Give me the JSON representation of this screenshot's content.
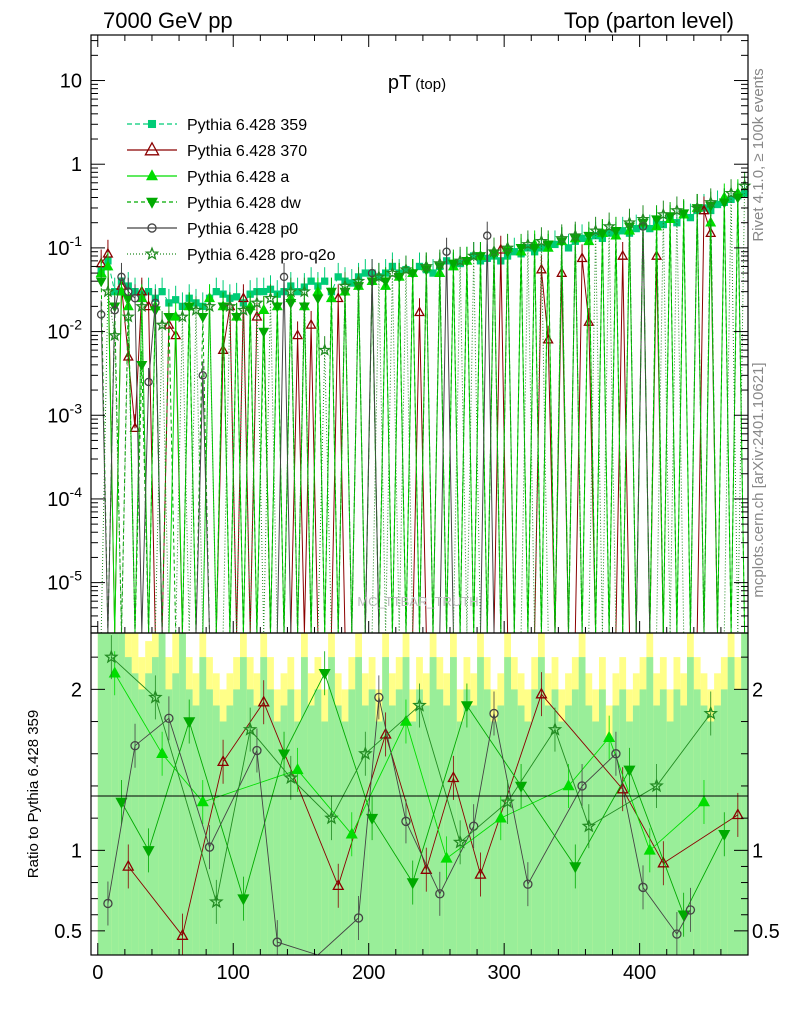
{
  "header": {
    "left": "7000 GeV pp",
    "right": "Top (parton level)"
  },
  "side_labels": {
    "rivet": "Rivet 4.1.0, ≥ 100k events",
    "mcplots": "mcplots.cern.ch [arXiv:2401.10621]"
  },
  "watermark": "MC_TTBAR_TRUTH",
  "chart_data": {
    "type": "line",
    "title": "pT",
    "title_sub": "(top)",
    "xlabel": "",
    "ylabel_main": "",
    "ylabel_ratio": "Ratio to Pythia 6.428 359",
    "xlim": [
      -5,
      480
    ],
    "ylim_main": [
      2.5e-06,
      35
    ],
    "ylim_ratio": [
      0.35,
      2.35
    ],
    "yscale_main": "log",
    "x_ticks": [
      "0",
      "100",
      "200",
      "300",
      "400"
    ],
    "x_tick_values": [
      0,
      100,
      200,
      300,
      400
    ],
    "y_ticks_main": [
      "10",
      "1",
      "10^-1",
      "10^-2",
      "10^-3",
      "10^-4",
      "10^-5"
    ],
    "y_tick_values_main": [
      10,
      1,
      0.1,
      0.01,
      0.001,
      0.0001,
      1e-05
    ],
    "y_ticks_ratio": [
      "2",
      "1",
      "0.5"
    ],
    "y_tick_values_ratio": [
      2,
      1,
      0.5
    ],
    "legend_position": "top-left",
    "bin_width": 5,
    "x": [
      2.5,
      7.5,
      12.5,
      17.5,
      22.5,
      27.5,
      32.5,
      37.5,
      42.5,
      47.5,
      52.5,
      57.5,
      62.5,
      67.5,
      72.5,
      77.5,
      82.5,
      87.5,
      92.5,
      97.5,
      102.5,
      107.5,
      112.5,
      117.5,
      122.5,
      127.5,
      132.5,
      137.5,
      142.5,
      147.5,
      152.5,
      157.5,
      162.5,
      167.5,
      172.5,
      177.5,
      182.5,
      187.5,
      192.5,
      197.5,
      202.5,
      207.5,
      212.5,
      217.5,
      222.5,
      227.5,
      232.5,
      237.5,
      242.5,
      247.5,
      252.5,
      257.5,
      262.5,
      267.5,
      272.5,
      277.5,
      282.5,
      287.5,
      292.5,
      297.5,
      302.5,
      307.5,
      312.5,
      317.5,
      322.5,
      327.5,
      332.5,
      337.5,
      342.5,
      347.5,
      352.5,
      357.5,
      362.5,
      367.5,
      372.5,
      377.5,
      382.5,
      387.5,
      392.5,
      397.5,
      402.5,
      407.5,
      412.5,
      417.5,
      422.5,
      427.5,
      432.5,
      437.5,
      442.5,
      447.5,
      452.5,
      457.5,
      462.5,
      467.5,
      472.5,
      477.5
    ],
    "series": [
      {
        "name": "Pythia 6.428 359",
        "color": "#00cc77",
        "dash": "5,3",
        "marker": "square",
        "filled": true,
        "values": [
          0.055,
          0.07,
          0.03,
          0.04,
          0.035,
          0.03,
          0.028,
          0.03,
          0.025,
          0.03,
          0.022,
          0.024,
          0.02,
          0.025,
          0.022,
          0.02,
          0.025,
          0.03,
          0.028,
          0.025,
          0.026,
          0.022,
          0.028,
          0.03,
          0.03,
          0.032,
          0.028,
          0.03,
          0.035,
          0.03,
          0.034,
          0.04,
          0.035,
          0.04,
          0.03,
          0.045,
          0.04,
          0.038,
          0.045,
          0.05,
          0.05,
          0.045,
          0.05,
          0.06,
          0.05,
          0.055,
          0.05,
          0.06,
          0.055,
          0.05,
          0.06,
          0.07,
          0.06,
          0.065,
          0.07,
          0.08,
          0.07,
          0.075,
          0.08,
          0.07,
          0.08,
          0.09,
          0.085,
          0.1,
          0.09,
          0.1,
          0.1,
          0.11,
          0.12,
          0.1,
          0.12,
          0.13,
          0.12,
          0.14,
          0.13,
          0.15,
          0.14,
          0.16,
          0.15,
          0.17,
          0.18,
          0.17,
          0.2,
          0.19,
          0.22,
          0.2,
          0.25,
          0.23,
          0.28,
          0.3,
          0.28,
          0.33,
          0.35,
          0.38,
          0.42,
          0.45
        ]
      },
      {
        "name": "Pythia 6.428 370",
        "color": "#8b0000",
        "dash": "",
        "marker": "triangle-up",
        "filled": false,
        "values": [
          0.065,
          0.085,
          0.0,
          0.035,
          0.005,
          0.0007,
          0.03,
          0.02,
          0.0,
          0.0,
          0.012,
          0.009,
          0.0,
          0.0,
          0.0,
          0.0,
          0.0,
          0.0,
          0.006,
          0.02,
          0.0,
          0.025,
          0.0,
          0.015,
          0.018,
          0.0,
          0.0,
          0.0,
          0.0,
          0.009,
          0.0,
          0.012,
          0.0,
          0.0,
          0.0,
          0.025,
          0.0,
          0.0,
          0.0,
          0.0,
          0.0,
          0.0,
          0.0,
          0.0,
          0.0,
          0.0,
          0.0,
          0.017,
          0.0,
          0.0,
          0.0,
          0.0,
          0.0,
          0.0,
          0.0,
          0.0,
          0.0,
          0.0,
          0.0,
          0.095,
          0.0,
          0.0,
          0.0,
          0.0,
          0.0,
          0.055,
          0.008,
          0.0,
          0.05,
          0.0,
          0.0,
          0.075,
          0.013,
          0.0,
          0.0,
          0.0,
          0.0,
          0.08,
          0.0,
          0.0,
          0.0,
          0.0,
          0.08,
          0.0,
          0.0,
          0.0,
          0.0,
          0.0,
          0.0,
          0.28,
          0.15,
          0.0,
          0.0,
          0.0,
          0.0,
          0.0
        ]
      },
      {
        "name": "Pythia 6.428 a",
        "color": "#00dd00",
        "dash": "",
        "marker": "triangle-up",
        "filled": true,
        "values": [
          0.05,
          0.06,
          0.0,
          0.03,
          0.02,
          0.0,
          0.025,
          0.0,
          0.02,
          0.0,
          0.0,
          0.015,
          0.0,
          0.02,
          0.0,
          0.0,
          0.025,
          0.0,
          0.02,
          0.0,
          0.015,
          0.0,
          0.02,
          0.0,
          0.018,
          0.0,
          0.02,
          0.0,
          0.025,
          0.0,
          0.02,
          0.0,
          0.03,
          0.0,
          0.025,
          0.0,
          0.03,
          0.0,
          0.035,
          0.0,
          0.04,
          0.0,
          0.035,
          0.0,
          0.045,
          0.0,
          0.05,
          0.0,
          0.06,
          0.0,
          0.05,
          0.0,
          0.06,
          0.0,
          0.07,
          0.0,
          0.08,
          0.0,
          0.09,
          0.0,
          0.1,
          0.0,
          0.09,
          0.0,
          0.11,
          0.0,
          0.1,
          0.0,
          0.12,
          0.0,
          0.13,
          0.0,
          0.12,
          0.0,
          0.15,
          0.0,
          0.14,
          0.0,
          0.16,
          0.0,
          0.2,
          0.0,
          0.18,
          0.0,
          0.22,
          0.0,
          0.25,
          0.0,
          0.3,
          0.0,
          0.2,
          0.0,
          0.4,
          0.0,
          0.45,
          0.0
        ]
      },
      {
        "name": "Pythia 6.428 dw",
        "color": "#00aa00",
        "dash": "4,3",
        "marker": "triangle-down",
        "filled": true,
        "values": [
          0.04,
          0.0,
          0.02,
          0.0,
          0.025,
          0.0,
          0.004,
          0.0,
          0.018,
          0.0,
          0.015,
          0.0,
          0.0,
          0.02,
          0.0,
          0.015,
          0.0,
          0.0,
          0.02,
          0.0,
          0.015,
          0.0,
          0.018,
          0.0,
          0.01,
          0.0,
          0.02,
          0.0,
          0.022,
          0.0,
          0.02,
          0.0,
          0.025,
          0.0,
          0.03,
          0.0,
          0.03,
          0.0,
          0.035,
          0.0,
          0.04,
          0.0,
          0.04,
          0.0,
          0.045,
          0.0,
          0.05,
          0.0,
          0.055,
          0.0,
          0.06,
          0.0,
          0.065,
          0.0,
          0.07,
          0.0,
          0.08,
          0.0,
          0.085,
          0.0,
          0.09,
          0.0,
          0.1,
          0.0,
          0.1,
          0.0,
          0.11,
          0.0,
          0.12,
          0.0,
          0.13,
          0.0,
          0.14,
          0.0,
          0.15,
          0.0,
          0.16,
          0.0,
          0.18,
          0.0,
          0.2,
          0.0,
          0.22,
          0.0,
          0.24,
          0.0,
          0.26,
          0.0,
          0.3,
          0.0,
          0.32,
          0.0,
          0.35,
          0.0,
          0.4,
          0.0
        ]
      },
      {
        "name": "Pythia 6.428 p0",
        "color": "#444444",
        "dash": "",
        "marker": "circle",
        "filled": false,
        "values": [
          0.016,
          0.0,
          0.018,
          0.045,
          0.03,
          0.025,
          0.0,
          0.0025,
          0.022,
          0.0,
          0.0,
          0.0,
          0.0,
          0.0,
          0.0,
          0.003,
          0.0,
          0.0,
          0.0,
          0.0,
          0.0,
          0.0,
          0.0,
          0.0,
          0.0,
          0.0,
          0.0,
          0.045,
          0.0,
          0.0,
          0.0,
          0.0,
          0.0,
          0.0,
          0.0,
          0.0,
          0.0,
          0.0,
          0.0,
          0.0,
          0.05,
          0.0,
          0.0,
          0.0,
          0.0,
          0.0,
          0.0,
          0.0,
          0.0,
          0.0,
          0.0,
          0.09,
          0.0,
          0.0,
          0.0,
          0.0,
          0.0,
          0.14,
          0.0,
          0.0,
          0.0,
          0.0,
          0.0,
          0.0,
          0.0,
          0.0,
          0.0,
          0.0,
          0.0,
          0.0,
          0.0,
          0.0,
          0.0,
          0.0,
          0.0,
          0.0,
          0.0,
          0.0,
          0.0,
          0.0,
          0.18,
          0.0,
          0.0,
          0.0,
          0.0,
          0.0,
          0.0,
          0.0,
          0.0,
          0.0,
          0.0,
          0.0,
          0.0,
          0.0,
          0.0,
          0.0
        ]
      },
      {
        "name": "Pythia 6.428 pro-q2o",
        "color": "#228b22",
        "dash": "1,2",
        "marker": "star",
        "filled": false,
        "values": [
          0.0,
          0.03,
          0.009,
          0.0,
          0.015,
          0.0,
          0.02,
          0.0,
          0.0,
          0.012,
          0.0,
          0.0,
          0.015,
          0.0,
          0.018,
          0.0,
          0.02,
          0.0,
          0.0,
          0.02,
          0.0,
          0.018,
          0.0,
          0.022,
          0.0,
          0.025,
          0.0,
          0.0,
          0.03,
          0.0,
          0.03,
          0.0,
          0.0,
          0.006,
          0.0,
          0.0,
          0.035,
          0.0,
          0.04,
          0.0,
          0.0,
          0.045,
          0.0,
          0.05,
          0.0,
          0.055,
          0.0,
          0.0,
          0.06,
          0.0,
          0.065,
          0.0,
          0.0,
          0.07,
          0.0,
          0.08,
          0.0,
          0.0,
          0.09,
          0.0,
          0.1,
          0.0,
          0.0,
          0.11,
          0.0,
          0.12,
          0.0,
          0.0,
          0.13,
          0.0,
          0.14,
          0.0,
          0.0,
          0.16,
          0.0,
          0.18,
          0.0,
          0.0,
          0.2,
          0.0,
          0.22,
          0.0,
          0.0,
          0.25,
          0.0,
          0.28,
          0.0,
          0.0,
          0.3,
          0.0,
          0.35,
          0.0,
          0.0,
          0.45,
          0.0,
          0.55
        ]
      }
    ],
    "ratio_band_yellow": [
      2.35,
      2.35,
      2.35,
      2.35,
      2.35,
      2.35,
      2.2,
      2.3,
      2.35,
      2.35,
      2.2,
      2.35,
      2.35,
      2.2,
      2.1,
      2.35,
      2.2,
      2.1,
      2.0,
      2.1,
      2.2,
      2.35,
      2.2,
      2.1,
      2.35,
      2.2,
      2.0,
      2.1,
      2.2,
      2.0,
      2.35,
      2.1,
      2.2,
      2.0,
      2.35,
      2.1,
      2.0,
      2.2,
      2.35,
      2.1,
      2.2,
      2.0,
      2.35,
      2.1,
      2.2,
      2.35,
      2.0,
      2.2,
      2.1,
      2.35,
      2.2,
      2.1,
      2.35,
      2.0,
      2.2,
      2.1,
      2.35,
      2.2,
      2.0,
      2.1,
      2.35,
      2.2,
      2.1,
      2.0,
      2.2,
      2.35,
      2.1,
      2.2,
      2.0,
      2.1,
      2.2,
      2.35,
      2.1,
      2.0,
      2.2,
      1.9,
      2.1,
      2.2,
      2.0,
      2.1,
      2.2,
      2.35,
      2.1,
      2.2,
      2.0,
      2.2,
      2.1,
      2.35,
      2.2,
      2.1,
      2.0,
      2.1,
      2.2,
      2.35,
      2.2,
      2.35
    ],
    "ratio_band_green": [
      2.35,
      2.35,
      2.35,
      2.35,
      2.2,
      2.1,
      2.0,
      2.1,
      2.2,
      2.35,
      2.0,
      2.1,
      2.35,
      2.0,
      1.9,
      2.2,
      2.0,
      1.9,
      1.8,
      1.9,
      2.0,
      2.2,
      2.0,
      1.9,
      2.2,
      2.0,
      1.8,
      1.9,
      2.0,
      1.8,
      2.2,
      1.9,
      2.0,
      1.8,
      2.2,
      1.9,
      1.8,
      2.0,
      2.2,
      1.9,
      2.0,
      1.8,
      2.2,
      1.9,
      2.0,
      2.2,
      1.8,
      2.0,
      1.9,
      2.2,
      2.0,
      1.9,
      2.2,
      1.8,
      2.0,
      1.9,
      2.2,
      2.0,
      1.8,
      1.9,
      2.2,
      2.0,
      1.9,
      1.8,
      2.0,
      2.2,
      1.9,
      2.0,
      1.8,
      1.9,
      2.0,
      2.2,
      1.9,
      1.8,
      2.0,
      1.7,
      1.9,
      2.0,
      1.8,
      1.9,
      2.0,
      2.2,
      1.9,
      2.0,
      1.8,
      2.0,
      1.9,
      2.2,
      2.0,
      1.9,
      1.8,
      1.9,
      2.0,
      2.2,
      2.0,
      2.35
    ],
    "ratio_series": [
      {
        "name": "Pythia 6.428 370",
        "color": "#8b0000",
        "marker": "triangle-up",
        "filled": false,
        "points": [
          [
            22.5,
            0.9
          ],
          [
            62.5,
            0.47
          ],
          [
            92.5,
            1.55
          ],
          [
            122.5,
            1.92
          ],
          [
            177.5,
            0.78
          ],
          [
            212.5,
            1.72
          ],
          [
            242.5,
            0.88
          ],
          [
            262.5,
            1.45
          ],
          [
            282.5,
            0.85
          ],
          [
            327.5,
            1.97
          ],
          [
            387.5,
            1.38
          ],
          [
            417.5,
            0.92
          ],
          [
            472.5,
            1.22
          ]
        ]
      },
      {
        "name": "Pythia 6.428 a",
        "color": "#00dd00",
        "marker": "triangle-up",
        "filled": true,
        "points": [
          [
            12.5,
            2.1
          ],
          [
            47.5,
            1.6
          ],
          [
            77.5,
            1.3
          ],
          [
            147.5,
            1.5
          ],
          [
            187.5,
            1.1
          ],
          [
            227.5,
            1.8
          ],
          [
            257.5,
            0.95
          ],
          [
            297.5,
            1.2
          ],
          [
            347.5,
            1.4
          ],
          [
            377.5,
            1.7
          ],
          [
            407.5,
            1.0
          ],
          [
            447.5,
            1.3
          ]
        ]
      },
      {
        "name": "Pythia 6.428 dw",
        "color": "#00aa00",
        "marker": "triangle-down",
        "filled": true,
        "points": [
          [
            17.5,
            1.3
          ],
          [
            37.5,
            1.0
          ],
          [
            67.5,
            1.8
          ],
          [
            107.5,
            0.7
          ],
          [
            137.5,
            1.6
          ],
          [
            167.5,
            2.1
          ],
          [
            202.5,
            1.2
          ],
          [
            232.5,
            0.8
          ],
          [
            272.5,
            1.9
          ],
          [
            312.5,
            1.4
          ],
          [
            352.5,
            0.9
          ],
          [
            392.5,
            1.5
          ],
          [
            432.5,
            0.6
          ],
          [
            462.5,
            1.1
          ]
        ]
      },
      {
        "name": "Pythia 6.428 p0",
        "color": "#444444",
        "marker": "circle",
        "filled": false,
        "points": [
          [
            7.5,
            0.67
          ],
          [
            27.5,
            1.65
          ],
          [
            52.5,
            1.82
          ],
          [
            82.5,
            1.02
          ],
          [
            117.5,
            1.62
          ],
          [
            132.5,
            0.43
          ],
          [
            162.5,
            0.34
          ],
          [
            192.5,
            0.58
          ],
          [
            207.5,
            1.95
          ],
          [
            227.5,
            1.18
          ],
          [
            252.5,
            0.73
          ],
          [
            277.5,
            1.15
          ],
          [
            292.5,
            1.85
          ],
          [
            317.5,
            0.79
          ],
          [
            357.5,
            1.4
          ],
          [
            382.5,
            1.6
          ],
          [
            402.5,
            0.77
          ],
          [
            427.5,
            0.48
          ],
          [
            437.5,
            0.63
          ]
        ]
      },
      {
        "name": "Pythia 6.428 pro-q2o",
        "color": "#228b22",
        "marker": "star",
        "filled": false,
        "points": [
          [
            10.0,
            2.2
          ],
          [
            42.5,
            1.95
          ],
          [
            87.5,
            0.68
          ],
          [
            112.5,
            1.75
          ],
          [
            142.5,
            1.45
          ],
          [
            172.5,
            1.2
          ],
          [
            197.5,
            1.6
          ],
          [
            237.5,
            1.9
          ],
          [
            267.5,
            1.05
          ],
          [
            302.5,
            1.3
          ],
          [
            337.5,
            1.75
          ],
          [
            362.5,
            1.15
          ],
          [
            412.5,
            1.4
          ],
          [
            452.5,
            1.85
          ]
        ]
      }
    ]
  }
}
